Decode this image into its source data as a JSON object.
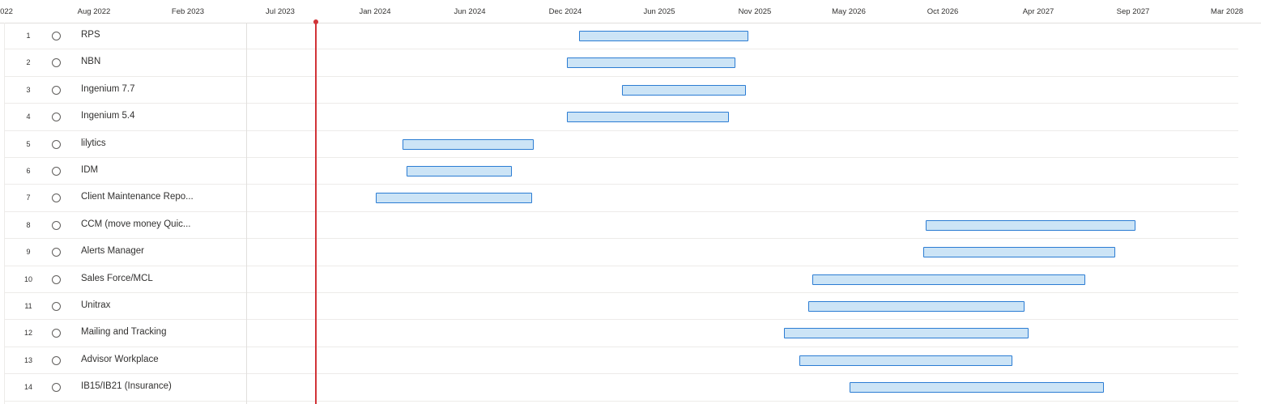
{
  "timeline": {
    "ticks": [
      "022",
      "Aug 2022",
      "Feb 2023",
      "Jul 2023",
      "Jan 2024",
      "Jun 2024",
      "Dec 2024",
      "Jun 2025",
      "Nov 2025",
      "May 2026",
      "Oct 2026",
      "Apr 2027",
      "Sep 2027",
      "Mar 2028"
    ]
  },
  "colors": {
    "bar_fill": "#cce4f6",
    "bar_border": "#2b7cd3",
    "today_marker": "#d13438"
  },
  "tasks": [
    {
      "num": "1",
      "name": "RPS",
      "start": "2024-12-20",
      "end": "2025-10-21"
    },
    {
      "num": "2",
      "name": "NBN",
      "start": "2024-11-29",
      "end": "2025-09-28"
    },
    {
      "num": "3",
      "name": "Ingenium 7.7",
      "start": "2025-03-07",
      "end": "2025-10-17"
    },
    {
      "num": "4",
      "name": "Ingenium 5.4",
      "start": "2024-11-29",
      "end": "2025-09-16"
    },
    {
      "num": "5",
      "name": "lilytics",
      "start": "2024-02-06",
      "end": "2024-09-29"
    },
    {
      "num": "6",
      "name": "IDM",
      "start": "2024-02-14",
      "end": "2024-08-21"
    },
    {
      "num": "7",
      "name": "Client Maintenance Repo...",
      "start": "2023-12-20",
      "end": "2024-09-26"
    },
    {
      "num": "8",
      "name": "CCM (move money Quic...",
      "start": "2026-09-05",
      "end": "2027-09-18"
    },
    {
      "num": "9",
      "name": "Alerts Manager",
      "start": "2026-09-01",
      "end": "2027-08-13"
    },
    {
      "num": "10",
      "name": "Sales Force/MCL",
      "start": "2026-02-13",
      "end": "2027-06-20"
    },
    {
      "num": "11",
      "name": "Unitrax",
      "start": "2026-02-06",
      "end": "2027-03-03"
    },
    {
      "num": "12",
      "name": "Mailing and Tracking",
      "start": "2025-12-24",
      "end": "2027-03-10"
    },
    {
      "num": "13",
      "name": "Advisor Workplace",
      "start": "2026-01-21",
      "end": "2027-02-08"
    },
    {
      "num": "14",
      "name": "IB15/IB21 (Insurance)",
      "start": "2026-04-21",
      "end": "2027-07-23"
    }
  ]
}
